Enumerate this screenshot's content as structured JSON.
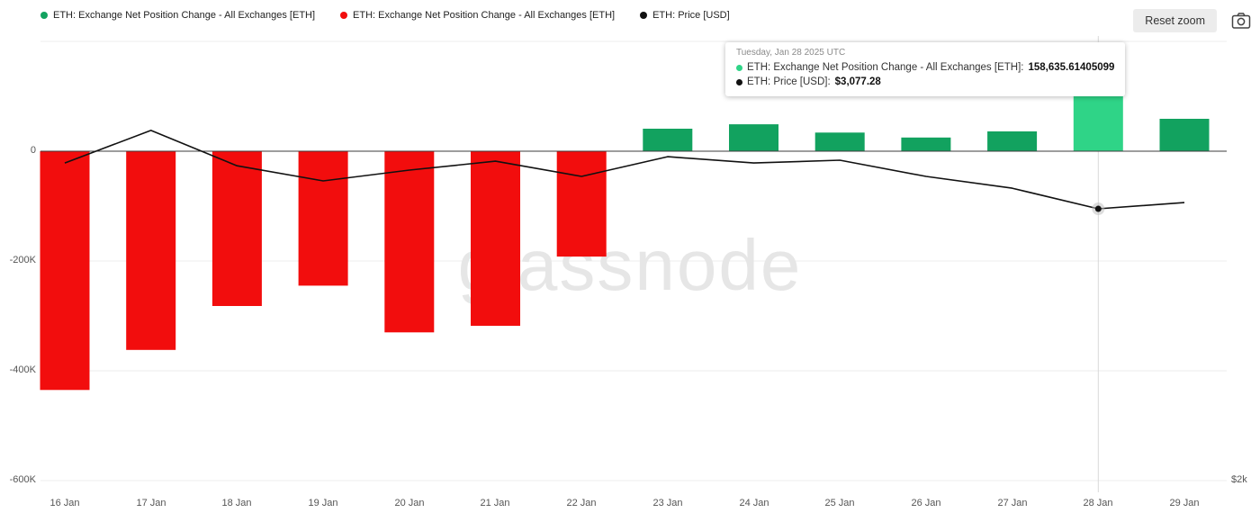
{
  "legend": {
    "items": [
      {
        "label": "ETH: Exchange Net Position Change - All Exchanges [ETH]",
        "color": "#12a25f"
      },
      {
        "label": "ETH: Exchange Net Position Change - All Exchanges [ETH]",
        "color": "#f20d0d"
      },
      {
        "label": "ETH: Price [USD]",
        "color": "#111111"
      }
    ]
  },
  "toolbar": {
    "reset_zoom_label": "Reset zoom",
    "camera_icon": "camera-icon"
  },
  "tooltip": {
    "title": "Tuesday, Jan 28 2025 UTC",
    "rows": [
      {
        "label": "ETH: Exchange Net Position Change - All Exchanges [ETH]:",
        "value": "158,635.61405099",
        "color": "#2fd487"
      },
      {
        "label": "ETH: Price [USD]:",
        "value": "$3,077.28",
        "color": "#111111"
      }
    ]
  },
  "chart_data": {
    "type": "bar",
    "title": "",
    "categories": [
      "16 Jan",
      "17 Jan",
      "18 Jan",
      "19 Jan",
      "20 Jan",
      "21 Jan",
      "22 Jan",
      "23 Jan",
      "24 Jan",
      "25 Jan",
      "26 Jan",
      "27 Jan",
      "28 Jan",
      "29 Jan"
    ],
    "series": [
      {
        "name": "ETH: Exchange Net Position Change - All Exchanges [ETH]",
        "type": "bar",
        "values": [
          -435000,
          -362000,
          -282000,
          -245000,
          -330000,
          -318000,
          -192000,
          41000,
          49000,
          34000,
          25000,
          36000,
          158635.61405099,
          59000
        ],
        "positive_color": "#12a25f",
        "negative_color": "#f20d0d",
        "highlight_color": "#2fd487",
        "highlight_index": 12
      },
      {
        "name": "ETH: Price [USD]",
        "type": "line",
        "values": [
          3259,
          3388,
          3248,
          3188,
          3231,
          3266,
          3206,
          3284,
          3259,
          3270,
          3206,
          3159,
          3077.28,
          3102
        ],
        "color": "#111111",
        "marker_index": 12
      }
    ],
    "left_axis": {
      "ticks": [
        "0",
        "-200K",
        "-400K",
        "-600K"
      ],
      "tick_values": [
        0,
        -200000,
        -400000,
        -600000
      ],
      "unlabeled_gridline_values": [
        200000
      ],
      "range": [
        -650000,
        210000
      ]
    },
    "right_axis": {
      "ticks": [
        "$2k"
      ],
      "tick_values": [
        2000
      ]
    },
    "grid": true,
    "legend_position": "top",
    "watermark": "glassnode",
    "crosshair_index": 12
  }
}
